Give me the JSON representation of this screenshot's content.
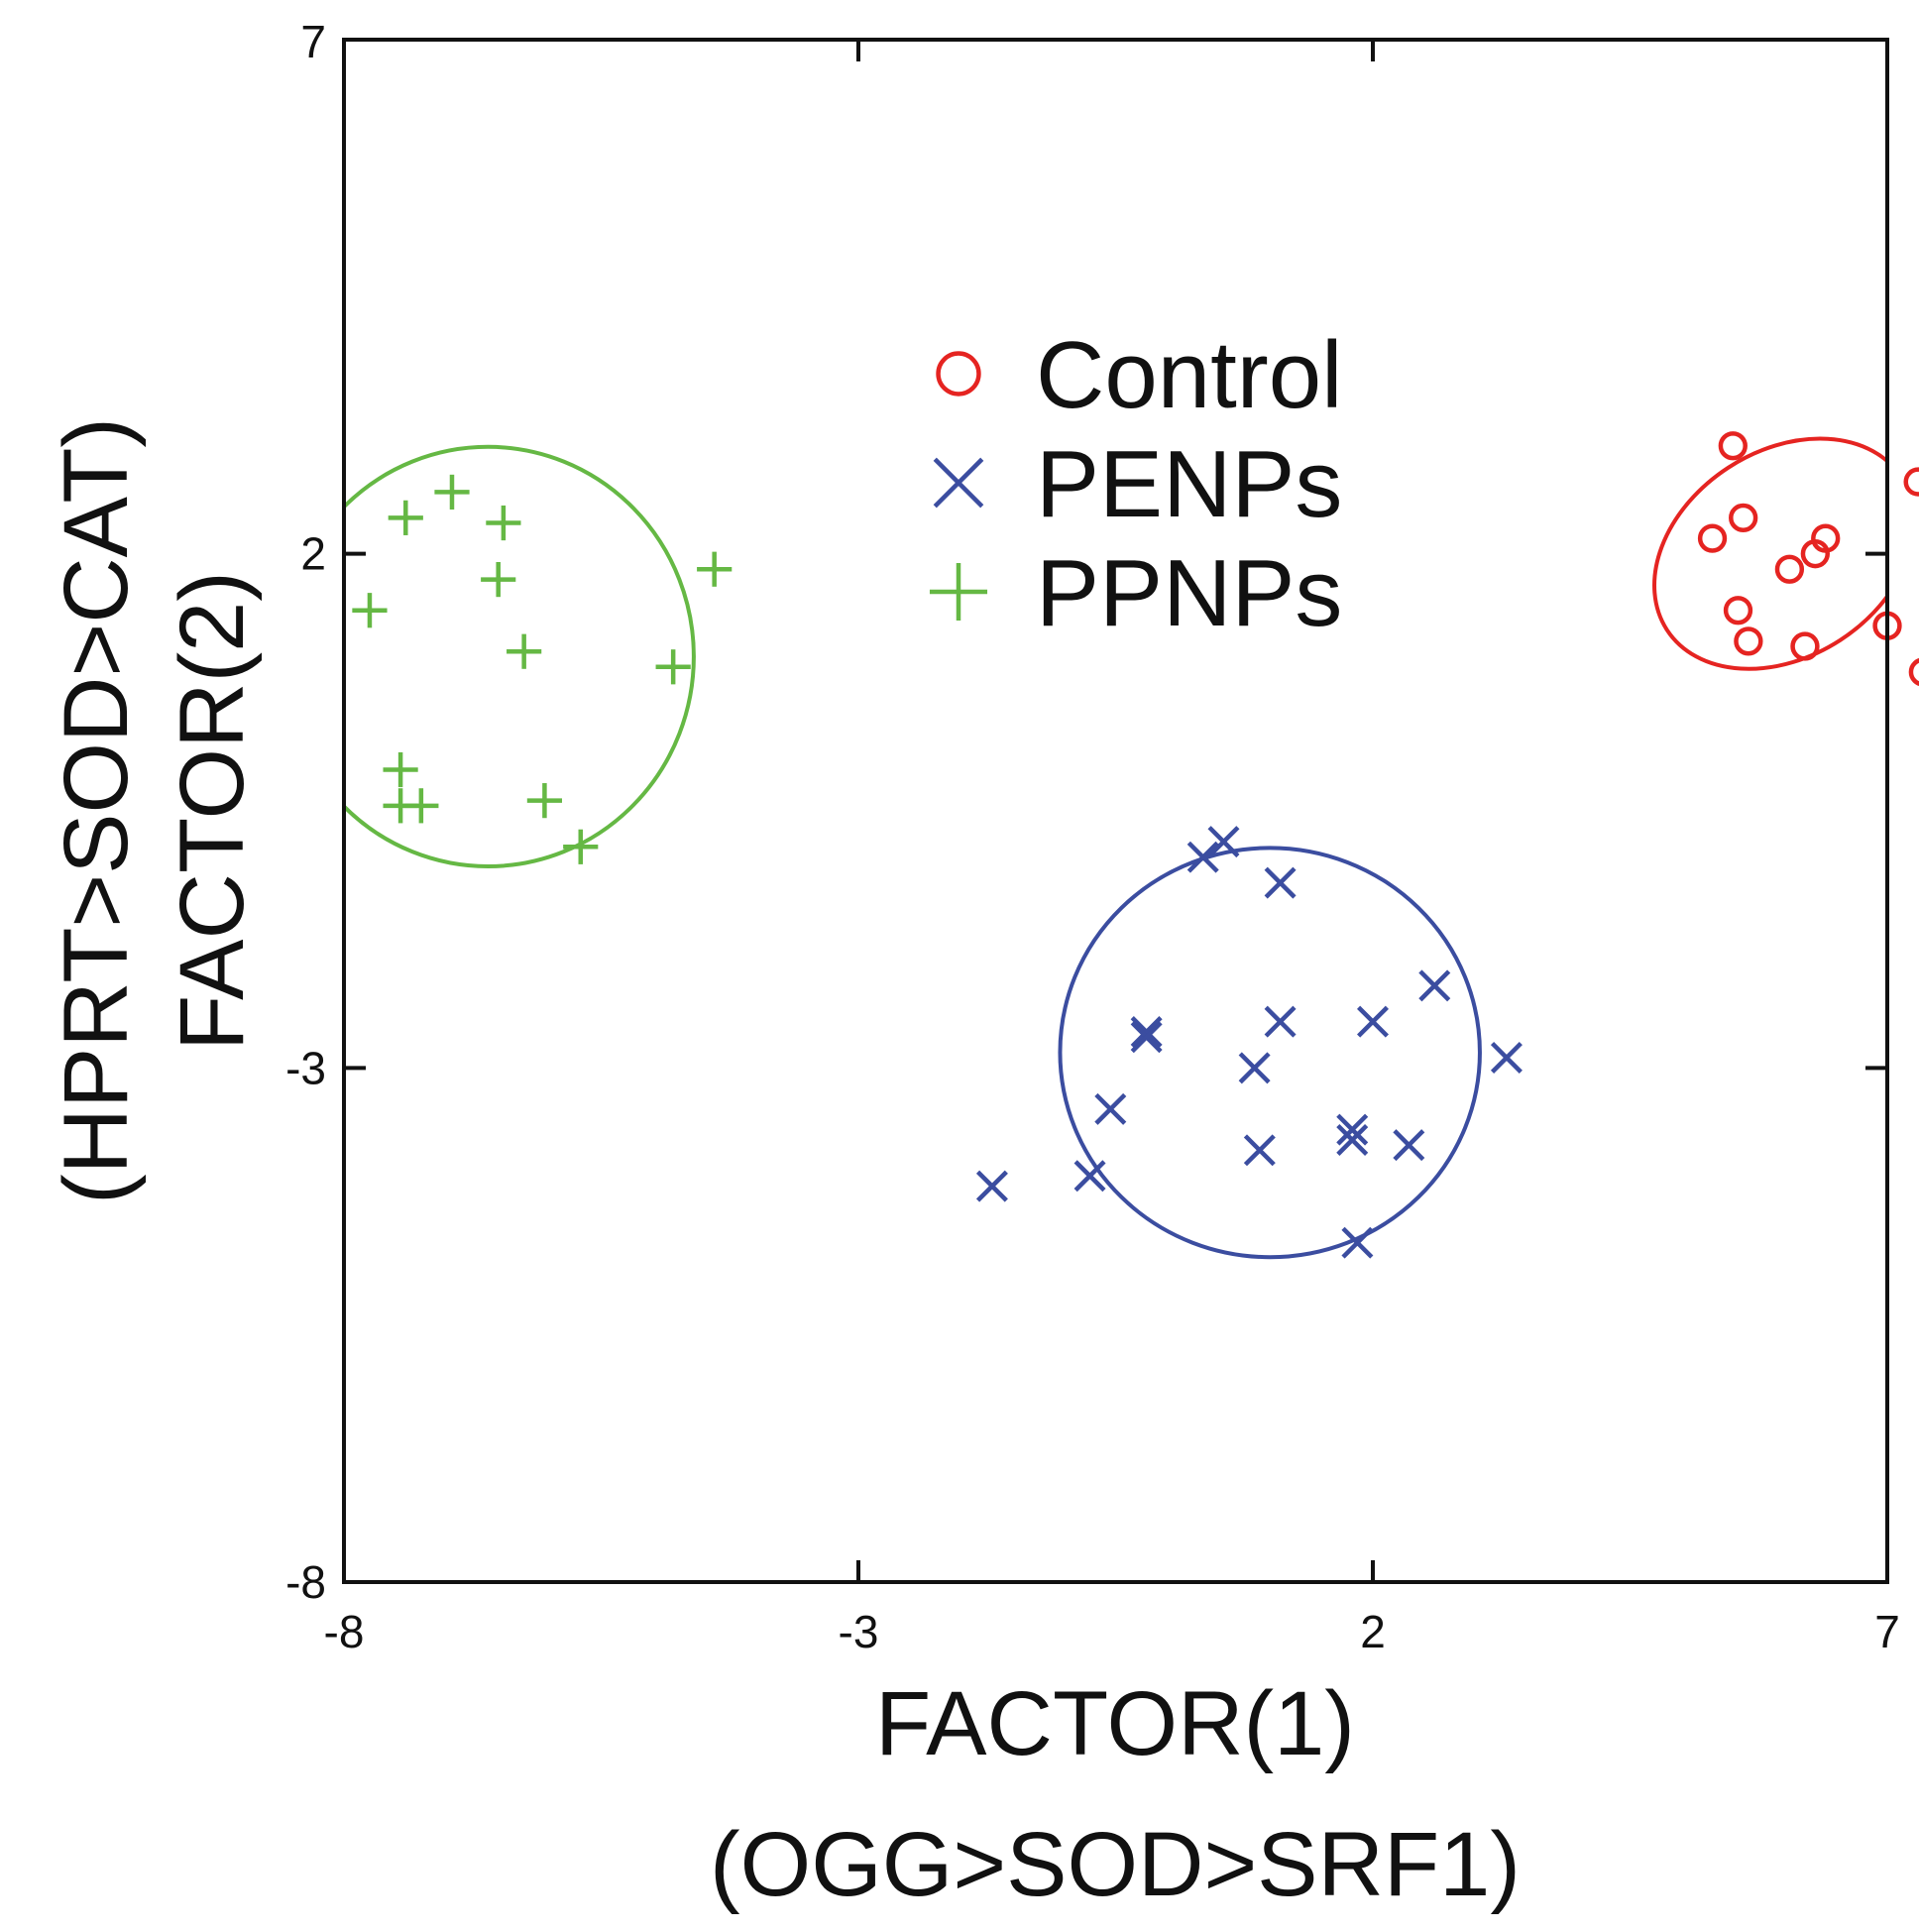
{
  "chart_data": {
    "type": "scatter",
    "xlim": [
      -8,
      7
    ],
    "ylim": [
      -8,
      7
    ],
    "x_ticks": [
      -8,
      -3,
      2,
      7
    ],
    "y_ticks": [
      -8,
      -3,
      2,
      7
    ],
    "x_tick_labels": [
      "-8",
      "-3",
      "2",
      "7"
    ],
    "y_tick_labels": [
      "-8",
      "-3",
      "2",
      "7"
    ],
    "xlabel": [
      "FACTOR(1)",
      "(OGG>SOD>SRF1)"
    ],
    "ylabel": [
      "FACTOR(2)",
      "(HPRT>SOD>CAT)"
    ],
    "grid": false,
    "legend_position": "upper-center",
    "series": [
      {
        "name": "Control",
        "marker": "circle",
        "color": "#e52421",
        "points": [
          [
            5.5,
            3.05
          ],
          [
            7.3,
            2.7
          ],
          [
            5.6,
            2.35
          ],
          [
            5.3,
            2.15
          ],
          [
            6.4,
            2.15
          ],
          [
            6.3,
            2.0
          ],
          [
            6.05,
            1.85
          ],
          [
            5.55,
            1.45
          ],
          [
            7.0,
            1.3
          ],
          [
            5.65,
            1.15
          ],
          [
            6.2,
            1.1
          ],
          [
            7.35,
            0.85
          ]
        ],
        "ellipse": {
          "cx": 6.0,
          "cy": 2.0,
          "rx": 1.36,
          "ry": 1.0,
          "angle_deg": -33
        }
      },
      {
        "name": "PENPs",
        "marker": "x",
        "color": "#3b4da0",
        "points": [
          [
            0.55,
            -0.8
          ],
          [
            0.35,
            -0.95
          ],
          [
            1.1,
            -1.2
          ],
          [
            2.6,
            -2.2
          ],
          [
            1.1,
            -2.55
          ],
          [
            2.0,
            -2.55
          ],
          [
            -0.2,
            -2.65
          ],
          [
            -0.2,
            -2.7
          ],
          [
            0.85,
            -3.0
          ],
          [
            3.3,
            -2.9
          ],
          [
            -0.55,
            -3.4
          ],
          [
            1.8,
            -3.6
          ],
          [
            1.8,
            -3.7
          ],
          [
            0.9,
            -3.8
          ],
          [
            2.35,
            -3.75
          ],
          [
            -0.75,
            -4.05
          ],
          [
            -1.7,
            -4.15
          ],
          [
            1.85,
            -4.7
          ]
        ],
        "ellipse": {
          "cx": 1.0,
          "cy": -2.85,
          "rx": 2.04,
          "ry": 1.99,
          "angle_deg": 0
        }
      },
      {
        "name": "PPNPs",
        "marker": "plus",
        "color": "#65b844",
        "points": [
          [
            -6.95,
            2.6
          ],
          [
            -7.4,
            2.35
          ],
          [
            -6.45,
            2.3
          ],
          [
            -6.5,
            1.75
          ],
          [
            -4.4,
            1.85
          ],
          [
            -7.75,
            1.45
          ],
          [
            -6.25,
            1.05
          ],
          [
            -4.8,
            0.9
          ],
          [
            -7.45,
            -0.1
          ],
          [
            -7.45,
            -0.45
          ],
          [
            -7.25,
            -0.45
          ],
          [
            -6.05,
            -0.4
          ],
          [
            -5.7,
            -0.85
          ]
        ],
        "ellipse": {
          "cx": -6.6,
          "cy": 1.0,
          "rx": 2.0,
          "ry": 2.04,
          "angle_deg": 0
        },
        "ellipse_clipped_to_axes": true
      }
    ]
  }
}
